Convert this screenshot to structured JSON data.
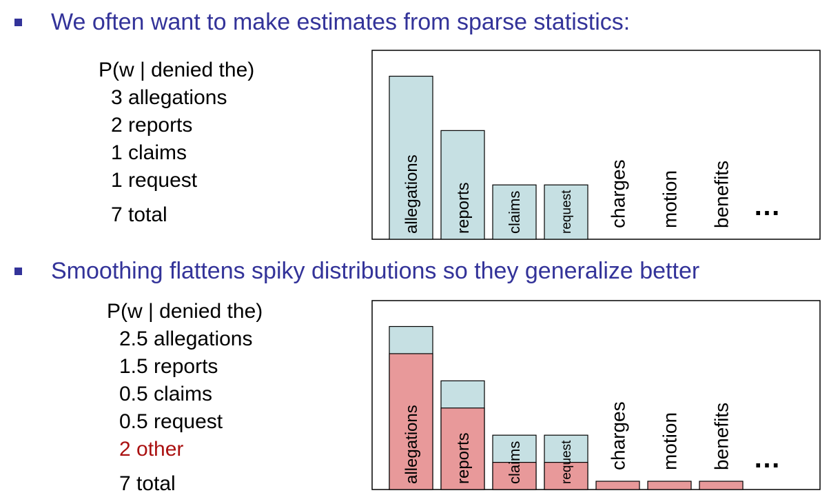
{
  "colors": {
    "heading": "#333399",
    "bullet": "#333399",
    "seen": "#c6e0e3",
    "smoothed": "#e8999a",
    "other": "#aa1111",
    "frame": "#000000"
  },
  "section1": {
    "heading": "We often want to make estimates from sparse statistics:",
    "title": "P(w | denied the)",
    "items": [
      "3 allegations",
      "2 reports",
      "1 claims",
      "1 request"
    ],
    "total": "7 total"
  },
  "section2": {
    "heading": "Smoothing flattens spiky distributions so they generalize better",
    "title": "P(w | denied the)",
    "items": [
      "2.5 allegations",
      "1.5 reports",
      "0.5 claims",
      "0.5 request"
    ],
    "other": "2 other",
    "total": "7 total"
  },
  "chart_data": [
    {
      "type": "bar",
      "categories": [
        "allegations",
        "reports",
        "claims",
        "request",
        "charges",
        "motion",
        "benefits"
      ],
      "series": [
        {
          "values": [
            3,
            2,
            1,
            1,
            0,
            0,
            0
          ]
        }
      ],
      "ellipsis": "…",
      "ylim": [
        0,
        3.4
      ]
    },
    {
      "type": "bar",
      "categories": [
        "allegations",
        "reports",
        "claims",
        "request",
        "charges",
        "motion",
        "benefits"
      ],
      "series": [
        {
          "values": [
            2.5,
            1.5,
            0.5,
            0.5,
            0.15,
            0.15,
            0.15
          ]
        },
        {
          "values": [
            3,
            2,
            1,
            1,
            0,
            0,
            0
          ]
        }
      ],
      "ellipsis": "…",
      "ylim": [
        0,
        3.4
      ]
    }
  ]
}
